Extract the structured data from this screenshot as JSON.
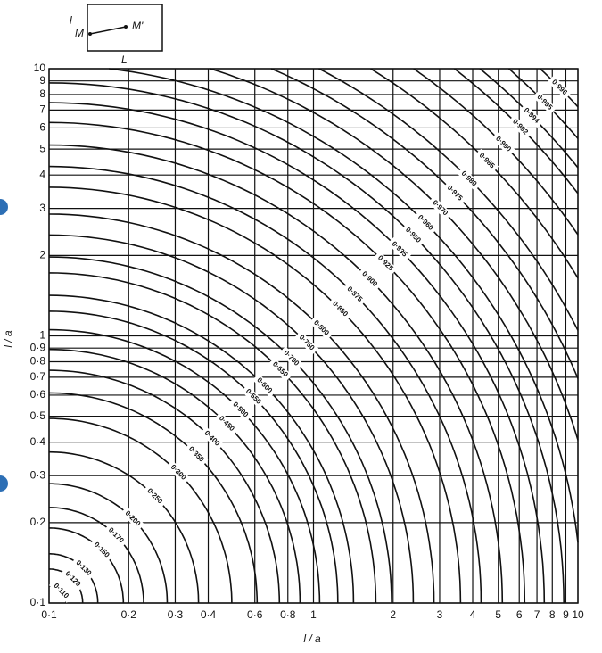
{
  "inset": {
    "left": "l",
    "start": "M",
    "end": "M'",
    "length": "L"
  },
  "chart_data": {
    "type": "contour",
    "x_label": "l / a",
    "y_label": "l / a",
    "xscale": "log",
    "yscale": "log",
    "grid": true,
    "color": "#111",
    "xlim": [
      0.1,
      10
    ],
    "ylim": [
      0.1,
      10
    ],
    "xticks": [
      {
        "value": 0.1,
        "label": "0·1"
      },
      {
        "value": 0.2,
        "label": "0·2"
      },
      {
        "value": 0.3,
        "label": "0·3"
      },
      {
        "value": 0.4,
        "label": "0·4"
      },
      {
        "value": 0.6,
        "label": "0·6"
      },
      {
        "value": 0.8,
        "label": "0·8"
      },
      1,
      2,
      3,
      4,
      5,
      6,
      7,
      8,
      9,
      10
    ],
    "yticks": [
      {
        "value": 0.1,
        "label": "0·1"
      },
      {
        "value": 0.2,
        "label": "0·2"
      },
      {
        "value": 0.3,
        "label": "0·3"
      },
      {
        "value": 0.4,
        "label": "0·4"
      },
      {
        "value": 0.5,
        "label": "0·5"
      },
      {
        "value": 0.6,
        "label": "0·6"
      },
      {
        "value": 0.7,
        "label": "0·7"
      },
      {
        "value": 0.8,
        "label": "0·8"
      },
      {
        "value": 0.9,
        "label": "0·9"
      },
      1,
      2,
      3,
      4,
      5,
      6,
      7,
      8,
      9,
      10
    ],
    "levels": [
      {
        "value": 0.11,
        "label": "0·110",
        "x": 0.111
      },
      {
        "value": 0.12,
        "label": "0·120",
        "x": 0.123
      },
      {
        "value": 0.13,
        "label": "0·130",
        "x": 0.135
      },
      {
        "value": 0.15,
        "label": "0·150",
        "x": 0.158
      },
      {
        "value": 0.17,
        "label": "0·170",
        "x": 0.179
      },
      {
        "value": 0.2,
        "label": "0·200",
        "x": 0.207
      },
      {
        "value": 0.25,
        "label": "0·250",
        "x": 0.251
      },
      {
        "value": 0.3,
        "label": "0·300",
        "x": 0.308
      },
      {
        "value": 0.35,
        "label": "0·350",
        "x": 0.36
      },
      {
        "value": 0.4,
        "label": "0·400",
        "x": 0.413
      },
      {
        "value": 0.45,
        "label": "0·450",
        "x": 0.469
      },
      {
        "value": 0.5,
        "label": "0·500",
        "x": 0.529
      },
      {
        "value": 0.55,
        "label": "0·550",
        "x": 0.592
      },
      {
        "value": 0.6,
        "label": "0·600",
        "x": 0.652
      },
      {
        "value": 0.65,
        "label": "0·650",
        "x": 0.748
      },
      {
        "value": 0.7,
        "label": "0·700",
        "x": 0.824
      },
      {
        "value": 0.75,
        "label": "0·750",
        "x": 0.942
      },
      {
        "value": 0.8,
        "label": "0·800",
        "x": 1.07
      },
      {
        "value": 0.85,
        "label": "0·850",
        "x": 1.26
      },
      {
        "value": 0.875,
        "label": "0·875",
        "x": 1.43
      },
      {
        "value": 0.9,
        "label": "0·900",
        "x": 1.63
      },
      {
        "value": 0.925,
        "label": "0·925",
        "x": 1.87
      },
      {
        "value": 0.935,
        "label": "0·935",
        "x": 2.11
      },
      {
        "value": 0.95,
        "label": "0·950",
        "x": 2.38
      },
      {
        "value": 0.96,
        "label": "0·960",
        "x": 2.65
      },
      {
        "value": 0.97,
        "label": "0·970",
        "x": 3.01
      },
      {
        "value": 0.975,
        "label": "0·975",
        "x": 3.42
      },
      {
        "value": 0.98,
        "label": "0·980",
        "x": 3.87
      },
      {
        "value": 0.985,
        "label": "0·985",
        "x": 4.52
      },
      {
        "value": 0.99,
        "label": "0·990",
        "x": 5.22
      },
      {
        "value": 0.992,
        "label": "0·992",
        "x": 6.05
      },
      {
        "value": 0.994,
        "label": "0·994",
        "x": 6.67
      },
      {
        "value": 0.995,
        "label": "0·995",
        "x": 7.48
      },
      {
        "value": 0.996,
        "label": "0·996",
        "x": 8.51
      }
    ]
  }
}
